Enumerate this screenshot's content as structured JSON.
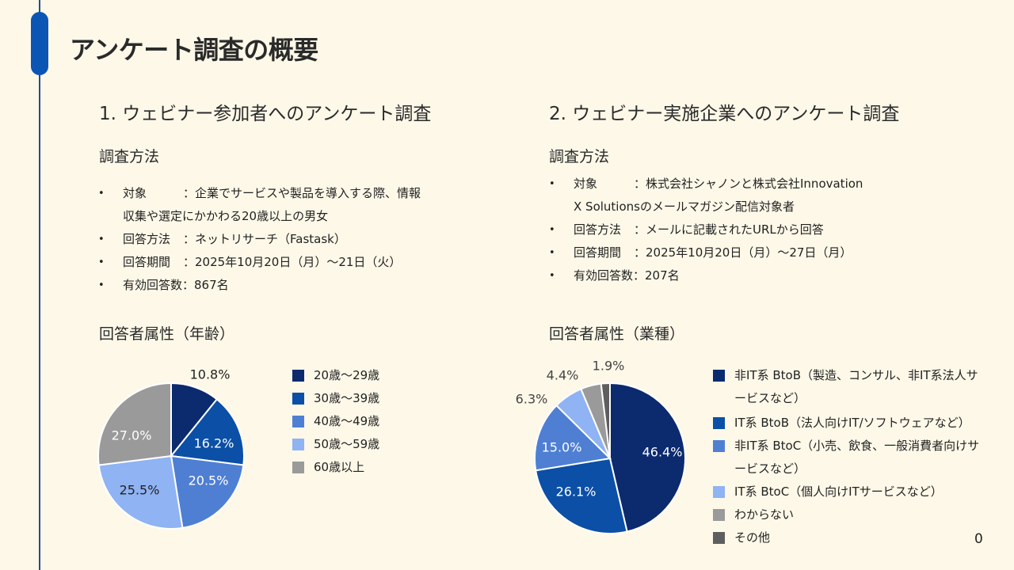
{
  "page_title": "アンケート調査の概要",
  "left": {
    "section_title": "1. ウェビナー参加者へのアンケート調査",
    "method_heading": "調査方法",
    "items": [
      {
        "label": "対象",
        "value": "：企業でサービスや製品を導入する際、情報\n収集や選定にかかわる20歳以上の男女"
      },
      {
        "label": "回答方法",
        "value": "：ネットリサーチ（Fastask）"
      },
      {
        "label": "回答期間",
        "value": "：2025年10月20日（月）～21日（火）"
      },
      {
        "label": "",
        "value": "有効回答数：867名"
      }
    ],
    "attr_heading": "回答者属性（年齢）"
  },
  "right": {
    "section_title": "2. ウェビナー実施企業へのアンケート調査",
    "method_heading": "調査方法",
    "items": [
      {
        "label": "対象",
        "value": "：株式会社シャノンと株式会社Innovation\nX Solutionsのメールマガジン配信対象者"
      },
      {
        "label": "回答方法",
        "value": "：メールに記載されたURLから回答"
      },
      {
        "label": "回答期間",
        "value": "：2025年10月20日（月）～27日（月）"
      },
      {
        "label": "",
        "value": "有効回答数：207名"
      }
    ],
    "attr_heading": "回答者属性（業種）"
  },
  "page_number": "0",
  "chart_data": [
    {
      "type": "pie",
      "categories": [
        "20歳～29歳",
        "30歳～39歳",
        "40歳～49歳",
        "50歳～59歳",
        "60歳以上"
      ],
      "values": [
        10.8,
        16.2,
        20.5,
        25.5,
        27.0
      ],
      "labels": [
        "10.8%",
        "16.2%",
        "20.5%",
        "25.5%",
        "27.0%"
      ],
      "colors": [
        "#0c2a6e",
        "#0b4fa6",
        "#4f7fd3",
        "#8fb3f3",
        "#9a9a9a"
      ],
      "label_colors": [
        "#222222",
        "#ffffff",
        "#ffffff",
        "#222222",
        "#ffffff"
      ],
      "legend": "right"
    },
    {
      "type": "pie",
      "categories": [
        "非IT系 BtoB（製造、コンサル、非IT系法人サ\nービスなど）",
        "IT系 BtoB（法人向けIT/ソフトウェアなど）",
        "非IT系 BtoC（小売、飲食、一般消費者向けサ\nービスなど）",
        "IT系 BtoC（個人向けITサービスなど）",
        "わからない",
        "その他"
      ],
      "values": [
        46.4,
        26.1,
        15.0,
        6.3,
        4.4,
        1.9
      ],
      "labels": [
        "46.4%",
        "26.1%",
        "15.0%",
        "6.3%",
        "4.4%",
        "1.9%"
      ],
      "colors": [
        "#0c2a6e",
        "#0b4fa6",
        "#4f7fd3",
        "#8fb3f3",
        "#9a9a9a",
        "#5e5e5e"
      ],
      "label_colors": [
        "#ffffff",
        "#ffffff",
        "#ffffff",
        "#444444",
        "#444444",
        "#444444"
      ],
      "legend": "right"
    }
  ]
}
